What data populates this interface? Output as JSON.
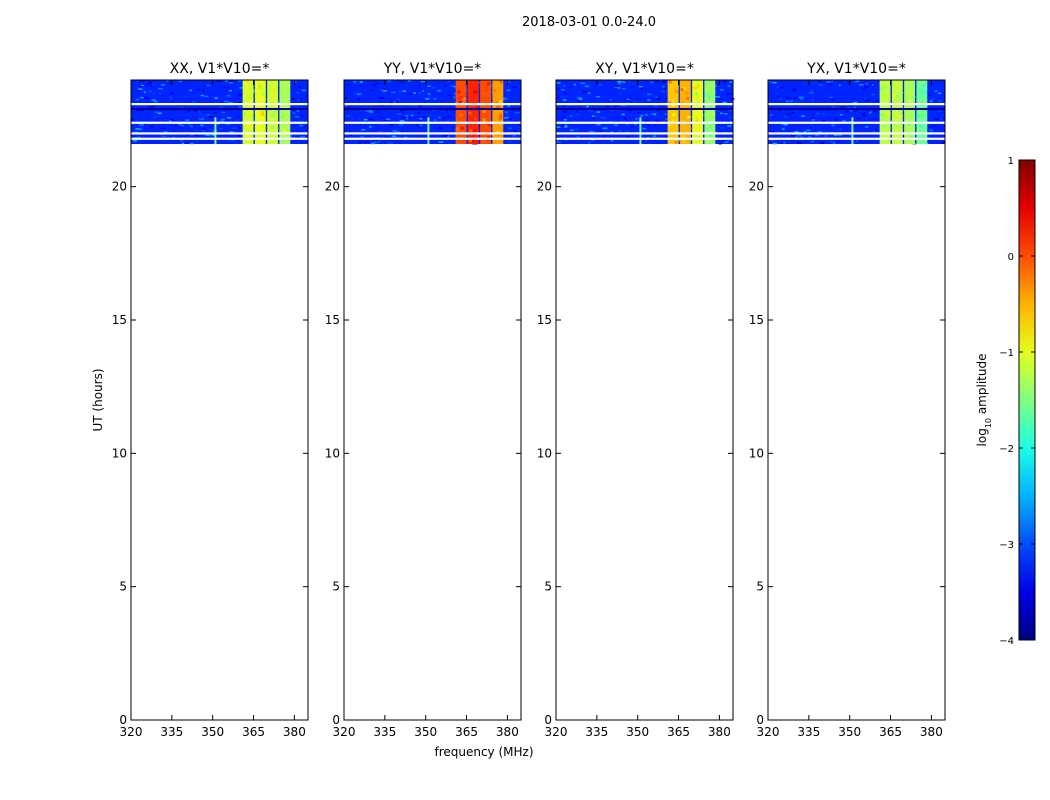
{
  "suptitle": "2018-03-01 0.0-24.0",
  "chart_data": {
    "type": "heatmap",
    "xlabel": "frequency (MHz)",
    "ylabel": "UT (hours)",
    "xlim": [
      320,
      385
    ],
    "ylim": [
      0,
      24
    ],
    "xticks": [
      320,
      335,
      350,
      365,
      380
    ],
    "yticks": [
      0,
      5,
      10,
      15,
      20
    ],
    "observed_ut_range": [
      21.6,
      24
    ],
    "flagged_ut_rows": [
      23.1,
      22.4,
      22.0,
      21.8
    ],
    "broadband_channel_mhz": 351,
    "panels": [
      {
        "title": "XX, V1*V10=*",
        "background_level": -3.2,
        "blocks": [
          {
            "f0": 361,
            "f1": 365,
            "level": -1.1
          },
          {
            "f0": 365.5,
            "f1": 369.5,
            "level": -1.0
          },
          {
            "f0": 370,
            "f1": 374,
            "level": -1.1
          },
          {
            "f0": 374.5,
            "f1": 378.5,
            "level": -1.3
          }
        ]
      },
      {
        "title": "YY, V1*V10=*",
        "background_level": -3.2,
        "blocks": [
          {
            "f0": 361,
            "f1": 365,
            "level": 0.0
          },
          {
            "f0": 365.5,
            "f1": 369.5,
            "level": 0.2
          },
          {
            "f0": 370,
            "f1": 374,
            "level": 0.0
          },
          {
            "f0": 374.5,
            "f1": 378.5,
            "level": -0.4
          }
        ]
      },
      {
        "title": "XY, V1*V10=*",
        "background_level": -3.2,
        "blocks": [
          {
            "f0": 361,
            "f1": 365,
            "level": -0.6
          },
          {
            "f0": 365.5,
            "f1": 369.5,
            "level": -0.5
          },
          {
            "f0": 370,
            "f1": 374,
            "level": -1.0
          },
          {
            "f0": 374.5,
            "f1": 378.5,
            "level": -1.4
          }
        ]
      },
      {
        "title": "YX, V1*V10=*",
        "background_level": -3.2,
        "blocks": [
          {
            "f0": 361,
            "f1": 365,
            "level": -1.2
          },
          {
            "f0": 365.5,
            "f1": 369.5,
            "level": -1.2
          },
          {
            "f0": 370,
            "f1": 374,
            "level": -1.3
          },
          {
            "f0": 374.5,
            "f1": 378.5,
            "level": -1.6
          }
        ]
      }
    ],
    "colorbar": {
      "label_prefix": "log",
      "label_sub": "10",
      "label_suffix": " amplitude",
      "range": [
        -4,
        1
      ],
      "ticks": [
        "1",
        "0",
        "−1",
        "−2",
        "−3",
        "−4"
      ],
      "tick_values": [
        1,
        0,
        -1,
        -2,
        -3,
        -4
      ],
      "colormap": "jet"
    }
  }
}
